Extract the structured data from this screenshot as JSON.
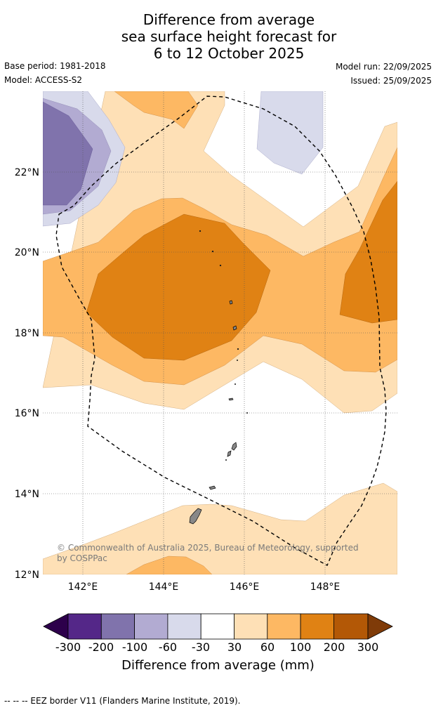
{
  "title": {
    "line1": "Difference from average",
    "line2": "sea surface height forecast for",
    "line3": "6 to 12 October 2025"
  },
  "meta": {
    "base_period": "Base period: 1981-2018",
    "model": "Model: ACCESS-S2",
    "model_run": "Model run: 22/09/2025",
    "issued": "Issued: 25/09/2025"
  },
  "map": {
    "lat_labels": [
      "22°N",
      "20°N",
      "18°N",
      "16°N",
      "14°N",
      "12°N"
    ],
    "lon_labels": [
      "142°E",
      "144°E",
      "146°E",
      "148°E"
    ],
    "credit_line1": "© Commonwealth of Australia 2025, Bureau of Meteorology, supported",
    "credit_line2": "by COSPPac"
  },
  "colorbar": {
    "tick_labels": [
      "-300",
      "-200",
      "-100",
      "-60",
      "-30",
      "30",
      "60",
      "100",
      "200",
      "300"
    ],
    "title": "Difference from average (mm)",
    "colors": {
      "below_min": "#2d004b",
      "c1": "#542788",
      "c2": "#8073ac",
      "c3": "#b2abd2",
      "c4": "#d8daeb",
      "c5": "#ffffff",
      "c6": "#fee0b6",
      "c7": "#fdb863",
      "c8": "#e08214",
      "c9": "#b35806",
      "above_max": "#7f3b08"
    }
  },
  "footnote": "-- -- -- EEZ border V11 (Flanders Marine Institute, 2019)."
}
